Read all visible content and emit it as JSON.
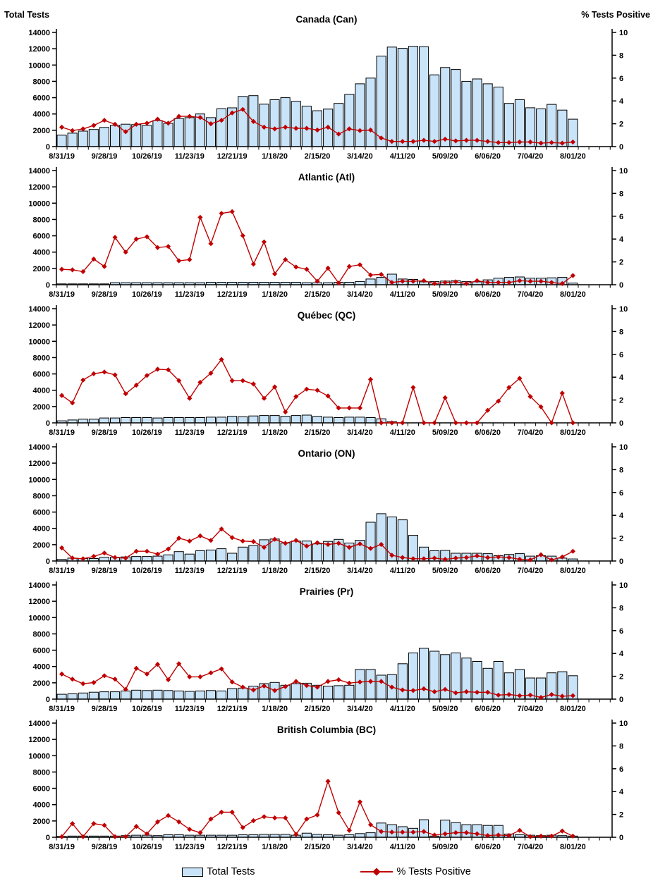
{
  "axes": {
    "left_title": "Total Tests",
    "right_title": "% Tests Positive"
  },
  "legend": {
    "total_tests_label": "Total Tests",
    "pct_positive_label": "% Tests Positive"
  },
  "colors": {
    "bar_fill": "#C9E3F8",
    "bar_stroke": "#000000",
    "line": "#C00000",
    "axis": "#000000"
  },
  "chart_data": {
    "type": "multi-panel combo (bar + line)",
    "bar_series_name": "Total Tests",
    "line_series_name": "% Tests Positive",
    "left_axis": {
      "min": 0,
      "max": 14000,
      "step": 2000
    },
    "right_axis": {
      "min": 0,
      "max": 10,
      "step": 2
    },
    "x_label_every_n": 4,
    "categories": [
      "8/31/19",
      "9/07/19",
      "9/14/19",
      "9/21/19",
      "9/28/19",
      "10/05/19",
      "10/12/19",
      "10/19/19",
      "10/26/19",
      "11/02/19",
      "11/09/19",
      "11/16/19",
      "11/23/19",
      "11/30/19",
      "12/07/19",
      "12/14/19",
      "12/21/19",
      "12/28/19",
      "1/04/20",
      "1/11/20",
      "1/18/20",
      "1/25/20",
      "2/01/20",
      "2/08/20",
      "2/15/20",
      "2/22/20",
      "2/29/20",
      "3/07/20",
      "3/14/20",
      "3/21/20",
      "3/28/20",
      "4/04/20",
      "4/11/20",
      "4/18/20",
      "4/25/20",
      "5/02/20",
      "5/09/20",
      "5/16/20",
      "5/23/20",
      "5/30/20",
      "6/06/20",
      "6/13/20",
      "6/20/20",
      "6/27/20",
      "7/04/20",
      "7/11/20",
      "7/18/20",
      "7/25/20",
      "8/01/20"
    ],
    "x_tick_labels": [
      "8/31/19",
      "9/28/19",
      "10/26/19",
      "11/23/19",
      "12/21/19",
      "1/18/20",
      "2/15/20",
      "3/14/20",
      "4/11/20",
      "5/09/20",
      "6/06/20",
      "7/04/20",
      "8/01/20"
    ],
    "panels": [
      {
        "title": "Canada (Can)",
        "bars": [
          1400,
          1650,
          1900,
          2100,
          2350,
          2600,
          2750,
          2700,
          2600,
          3200,
          2850,
          3450,
          3550,
          4000,
          3550,
          4650,
          4750,
          6150,
          6250,
          5200,
          5750,
          6000,
          5550,
          4950,
          4400,
          4600,
          5300,
          6400,
          7700,
          8400,
          11100,
          12200,
          12050,
          12300,
          12250,
          8800,
          9700,
          9450,
          8000,
          8300,
          7700,
          7300,
          5300,
          5750,
          4760,
          4620,
          5180,
          4480,
          3360
        ],
        "line": [
          1.7,
          1.4,
          1.55,
          1.85,
          2.3,
          1.95,
          1.3,
          1.95,
          2.05,
          2.4,
          2.05,
          2.65,
          2.65,
          2.55,
          2.0,
          2.3,
          2.95,
          3.25,
          2.2,
          1.7,
          1.55,
          1.7,
          1.6,
          1.6,
          1.45,
          1.7,
          1.1,
          1.55,
          1.4,
          1.45,
          0.75,
          0.45,
          0.45,
          0.45,
          0.55,
          0.45,
          0.65,
          0.5,
          0.55,
          0.55,
          0.45,
          0.35,
          0.35,
          0.4,
          0.4,
          0.3,
          0.35,
          0.3,
          0.4
        ]
      },
      {
        "title": "Atlantic (Atl)",
        "bars": [
          100,
          100,
          100,
          100,
          100,
          250,
          250,
          250,
          250,
          250,
          250,
          250,
          250,
          250,
          300,
          300,
          300,
          300,
          300,
          300,
          300,
          300,
          300,
          250,
          250,
          250,
          300,
          300,
          400,
          700,
          900,
          1300,
          700,
          650,
          350,
          400,
          450,
          500,
          400,
          350,
          600,
          800,
          900,
          950,
          800,
          800,
          850,
          900,
          200
        ],
        "line": [
          1.35,
          1.3,
          1.15,
          2.25,
          1.6,
          4.15,
          2.85,
          4.0,
          4.2,
          3.25,
          3.35,
          2.1,
          2.2,
          5.9,
          3.6,
          6.25,
          6.4,
          4.3,
          1.8,
          3.75,
          0.95,
          2.2,
          1.55,
          1.35,
          0.3,
          1.45,
          0.15,
          1.6,
          1.75,
          0.85,
          0.9,
          0.2,
          0.3,
          0.3,
          0.35,
          0.1,
          0.2,
          0.25,
          0.1,
          0.35,
          0.2,
          0.2,
          0.2,
          0.35,
          0.3,
          0.3,
          0.2,
          0.1,
          0.8
        ]
      },
      {
        "title": "Québec (QC)",
        "bars": [
          250,
          350,
          450,
          450,
          600,
          600,
          650,
          650,
          650,
          600,
          650,
          650,
          650,
          650,
          700,
          700,
          800,
          750,
          850,
          900,
          900,
          800,
          900,
          950,
          800,
          700,
          650,
          700,
          700,
          650,
          500,
          150,
          0,
          0,
          0,
          0,
          0,
          0,
          0,
          0,
          0,
          0,
          0,
          0,
          0,
          0,
          0,
          0,
          0
        ],
        "line": [
          2.4,
          1.75,
          3.75,
          4.3,
          4.45,
          4.2,
          2.55,
          3.3,
          4.15,
          4.7,
          4.65,
          3.7,
          2.15,
          3.55,
          4.35,
          5.55,
          3.7,
          3.7,
          3.4,
          2.15,
          3.15,
          0.95,
          2.3,
          2.95,
          2.85,
          2.35,
          1.3,
          1.3,
          1.3,
          3.8,
          0,
          0,
          0,
          3.1,
          0,
          0,
          2.2,
          0,
          0,
          0,
          1.1,
          1.9,
          3.1,
          3.9,
          2.3,
          1.4,
          0,
          2.6,
          0
        ]
      },
      {
        "title": "Ontario (ON)",
        "bars": [
          200,
          350,
          300,
          300,
          450,
          450,
          500,
          550,
          550,
          600,
          750,
          1150,
          850,
          1250,
          1350,
          1500,
          950,
          1700,
          1900,
          2600,
          2700,
          2200,
          2450,
          2450,
          2100,
          2400,
          2650,
          2200,
          2550,
          4750,
          5800,
          5400,
          5050,
          3150,
          1700,
          1250,
          1300,
          950,
          950,
          950,
          900,
          650,
          800,
          900,
          600,
          650,
          600,
          350,
          250
        ],
        "line": [
          1.15,
          0.25,
          0.2,
          0.4,
          0.7,
          0.3,
          0.25,
          0.85,
          0.85,
          0.6,
          1.05,
          2.0,
          1.75,
          2.2,
          1.8,
          2.8,
          2.05,
          1.75,
          1.7,
          1.2,
          1.9,
          1.55,
          1.8,
          1.3,
          1.6,
          1.45,
          1.55,
          1.2,
          1.5,
          1.1,
          1.45,
          0.5,
          0.3,
          0.2,
          0.2,
          0.25,
          0.15,
          0.25,
          0.3,
          0.45,
          0.3,
          0.35,
          0.3,
          0.15,
          0.1,
          0.55,
          0.1,
          0.35,
          0.85
        ]
      },
      {
        "title": "Prairies (Pr)",
        "bars": [
          600,
          650,
          750,
          850,
          900,
          900,
          1000,
          1100,
          1050,
          1100,
          1050,
          1000,
          950,
          1000,
          1050,
          1000,
          1300,
          1350,
          1600,
          1900,
          2050,
          1700,
          1900,
          1950,
          1700,
          1600,
          1650,
          1700,
          3640,
          3640,
          2940,
          3010,
          4340,
          5670,
          6230,
          5880,
          5460,
          5670,
          5040,
          4620,
          3780,
          4620,
          3220,
          3640,
          2590,
          2590,
          3220,
          3360,
          2870
        ],
        "line": [
          2.2,
          1.75,
          1.35,
          1.45,
          2.05,
          1.75,
          0.85,
          2.7,
          2.2,
          3.05,
          1.7,
          3.1,
          1.95,
          1.95,
          2.3,
          2.65,
          1.5,
          1.05,
          0.8,
          1.15,
          0.75,
          1.1,
          1.55,
          1.2,
          1.05,
          1.55,
          1.7,
          1.4,
          1.5,
          1.55,
          1.55,
          1.05,
          0.8,
          0.75,
          0.9,
          0.65,
          0.85,
          0.55,
          0.65,
          0.6,
          0.6,
          0.35,
          0.4,
          0.3,
          0.35,
          0.15,
          0.4,
          0.25,
          0.3
        ]
      },
      {
        "title": "British Columbia (BC)",
        "bars": [
          100,
          150,
          150,
          150,
          150,
          150,
          200,
          250,
          250,
          200,
          300,
          300,
          250,
          250,
          250,
          250,
          250,
          300,
          300,
          350,
          350,
          350,
          250,
          500,
          350,
          300,
          250,
          300,
          450,
          550,
          1750,
          1550,
          1300,
          1100,
          2150,
          150,
          2100,
          1800,
          1550,
          1550,
          1450,
          1450,
          400,
          300,
          250,
          200,
          250,
          200,
          150
        ],
        "line": [
          0.05,
          1.2,
          0.05,
          1.2,
          1.05,
          0.05,
          0.05,
          0.95,
          0.3,
          1.35,
          1.9,
          1.35,
          0.7,
          0.4,
          1.6,
          2.2,
          2.2,
          0.85,
          1.45,
          1.8,
          1.7,
          1.7,
          0.25,
          1.6,
          1.95,
          4.9,
          2.15,
          0.6,
          3.1,
          1.1,
          0.5,
          0.45,
          0.45,
          0.45,
          0.5,
          0.2,
          0.3,
          0.4,
          0.4,
          0.3,
          0.15,
          0.2,
          0.15,
          0.6,
          0.05,
          0.1,
          0.1,
          0.55,
          0.1
        ]
      }
    ]
  }
}
